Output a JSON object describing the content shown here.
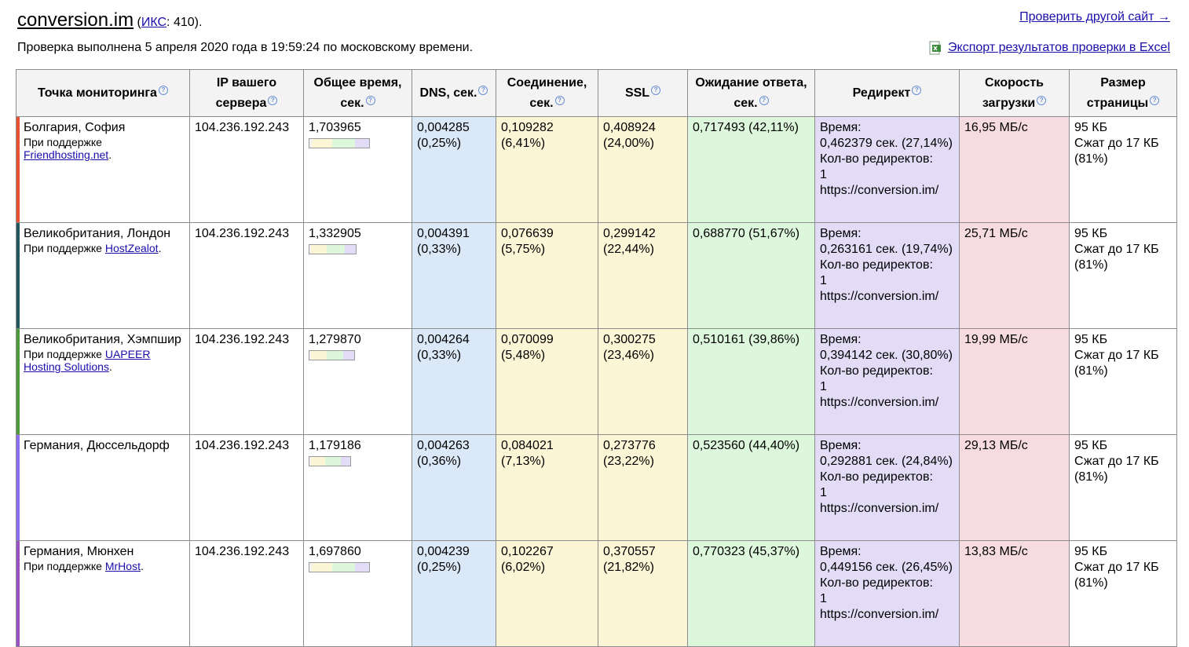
{
  "header": {
    "site": "conversion.im",
    "open_paren": " (",
    "iks_label": "ИКС",
    "iks_value": ": 410).",
    "check_line": "Проверка выполнена 5 апреля 2020 года в 19:59:24 по московскому времени.",
    "check_other": "Проверить другой сайт →",
    "export_label": "Экспорт результатов проверки в Excel"
  },
  "columns": [
    "Точка мониторинга",
    "IP вашего сервера",
    "Общее время, сек.",
    "DNS, сек.",
    "Соединение, сек.",
    "SSL",
    "Ожидание ответа, сек.",
    "Редирект",
    "Скорость загрузки",
    "Размер страницы"
  ],
  "colors": {
    "dns": "#dbe8f8",
    "connect": "#fcf6d6",
    "wait": "#dcf7dc",
    "redirect": "#e3dcf7",
    "speed": "#f6dce1"
  },
  "rows": [
    {
      "location": "Болгария, София",
      "sponsor_prefix": "При поддержке ",
      "sponsor_link": "Friendhosting.net",
      "sponsor_suffix": ".",
      "bar_color": "#e8502f",
      "ip": "104.236.192.243",
      "total": "1,703965",
      "total_ratio": 1.0,
      "dns": "0,004285 (0,25%)",
      "connect": "0,109282 (6,41%)",
      "ssl": "0,408924 (24,00%)",
      "wait": "0,717493 (42,11%)",
      "redirect_time_label": "Время:",
      "redirect_time": "0,462379 сек. (27,14%)",
      "redirect_count_label": "Кол-во редиректов:",
      "redirect_count": "1",
      "redirect_url": "https://conversion.im/",
      "speed": "16,95 МБ/с",
      "size": "95 КБ",
      "compressed": "Сжат до 17 КБ (81%)"
    },
    {
      "location": "Великобритания, Лондон",
      "sponsor_prefix": "При поддержке ",
      "sponsor_link": "HostZealot",
      "sponsor_suffix": ".",
      "bar_color": "#24565e",
      "ip": "104.236.192.243",
      "total": "1,332905",
      "total_ratio": 0.78,
      "dns": "0,004391 (0,33%)",
      "connect": "0,076639 (5,75%)",
      "ssl": "0,299142 (22,44%)",
      "wait": "0,688770 (51,67%)",
      "redirect_time_label": "Время:",
      "redirect_time": "0,263161 сек. (19,74%)",
      "redirect_count_label": "Кол-во редиректов:",
      "redirect_count": "1",
      "redirect_url": "https://conversion.im/",
      "speed": "25,71 МБ/с",
      "size": "95 КБ",
      "compressed": "Сжат до 17 КБ (81%)"
    },
    {
      "location": "Великобритания, Хэмпшир",
      "sponsor_prefix": "При поддержке ",
      "sponsor_link": "UAPEER Hosting Solutions",
      "sponsor_suffix": ".",
      "bar_color": "#4a9a3a",
      "ip": "104.236.192.243",
      "total": "1,279870",
      "total_ratio": 0.75,
      "dns": "0,004264 (0,33%)",
      "connect": "0,070099 (5,48%)",
      "ssl": "0,300275 (23,46%)",
      "wait": "0,510161 (39,86%)",
      "redirect_time_label": "Время:",
      "redirect_time": "0,394142 сек. (30,80%)",
      "redirect_count_label": "Кол-во редиректов:",
      "redirect_count": "1",
      "redirect_url": "https://conversion.im/",
      "speed": "19,99 МБ/с",
      "size": "95 КБ",
      "compressed": "Сжат до 17 КБ (81%)"
    },
    {
      "location": "Германия, Дюссельдорф",
      "sponsor_prefix": "",
      "sponsor_link": "",
      "sponsor_suffix": "",
      "bar_color": "#8a6ff0",
      "ip": "104.236.192.243",
      "total": "1,179186",
      "total_ratio": 0.69,
      "dns": "0,004263 (0,36%)",
      "connect": "0,084021 (7,13%)",
      "ssl": "0,273776 (23,22%)",
      "wait": "0,523560 (44,40%)",
      "redirect_time_label": "Время:",
      "redirect_time": "0,292881 сек. (24,84%)",
      "redirect_count_label": "Кол-во редиректов:",
      "redirect_count": "1",
      "redirect_url": "https://conversion.im/",
      "speed": "29,13 МБ/с",
      "size": "95 КБ",
      "compressed": "Сжат до 17 КБ (81%)"
    },
    {
      "location": "Германия, Мюнхен",
      "sponsor_prefix": "При поддержке ",
      "sponsor_link": "MrHost",
      "sponsor_suffix": ".",
      "bar_color": "#9b4fc4",
      "ip": "104.236.192.243",
      "total": "1,697860",
      "total_ratio": 1.0,
      "dns": "0,004239 (0,25%)",
      "connect": "0,102267 (6,02%)",
      "ssl": "0,370557 (21,82%)",
      "wait": "0,770323 (45,37%)",
      "redirect_time_label": "Время:",
      "redirect_time": "0,449156 сек. (26,45%)",
      "redirect_count_label": "Кол-во редиректов:",
      "redirect_count": "1",
      "redirect_url": "https://conversion.im/",
      "speed": "13,83 МБ/с",
      "size": "95 КБ",
      "compressed": "Сжат до 17 КБ (81%)"
    }
  ]
}
